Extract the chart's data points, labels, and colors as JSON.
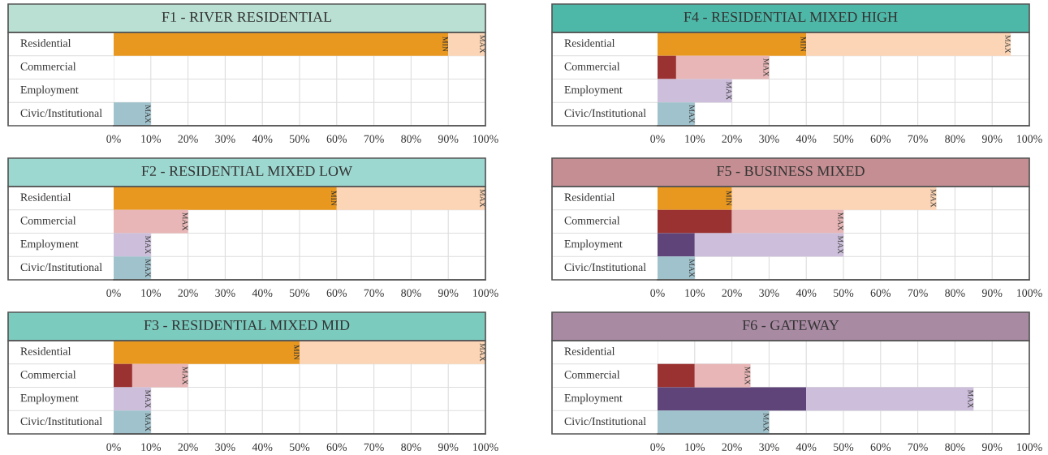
{
  "chart_data": [
    {
      "type": "bar",
      "orientation": "horizontal",
      "stacked": true,
      "title": "F1 - RIVER RESIDENTIAL",
      "categories": [
        "Residential",
        "Commercial",
        "Employment",
        "Civic/Institutional"
      ],
      "xlim": [
        0,
        100
      ],
      "xticks": [
        {
          "value": 0,
          "label": "0%"
        },
        {
          "value": 10,
          "label": "10%"
        },
        {
          "value": 20,
          "label": "20%"
        },
        {
          "value": 30,
          "label": "30%"
        },
        {
          "value": 40,
          "label": "40%"
        },
        {
          "value": 50,
          "label": "50%"
        },
        {
          "value": 60,
          "label": "60%"
        },
        {
          "value": 70,
          "label": "70%"
        },
        {
          "value": 80,
          "label": "80%"
        },
        {
          "value": 90,
          "label": "90%"
        },
        {
          "value": 100,
          "label": "100%"
        }
      ],
      "grid": true,
      "series": [
        {
          "colors": [
            "#e8971f",
            "#9b3232",
            "#5e4478",
            "#9fc2cc"
          ],
          "values": [
            90,
            null,
            null,
            null
          ],
          "value_labels": [
            "MIN",
            null,
            null,
            null
          ]
        },
        {
          "colors": [
            "#fbd5b5",
            "#e8b6b6",
            "#cdbfdc",
            "#9fc2cc"
          ],
          "values": [
            10,
            null,
            null,
            10
          ],
          "value_labels": [
            "MAX",
            null,
            null,
            "MAX"
          ]
        }
      ]
    },
    {
      "type": "bar",
      "orientation": "horizontal",
      "stacked": true,
      "title": "F4 - RESIDENTIAL MIXED HIGH",
      "categories": [
        "Residential",
        "Commercial",
        "Employment",
        "Civic/Institutional"
      ],
      "xlim": [
        0,
        100
      ],
      "xticks": [
        {
          "value": 0,
          "label": "0%"
        },
        {
          "value": 10,
          "label": "10%"
        },
        {
          "value": 20,
          "label": "20%"
        },
        {
          "value": 30,
          "label": "30%"
        },
        {
          "value": 40,
          "label": "40%"
        },
        {
          "value": 50,
          "label": "50%"
        },
        {
          "value": 60,
          "label": "60%"
        },
        {
          "value": 70,
          "label": "70%"
        },
        {
          "value": 80,
          "label": "80%"
        },
        {
          "value": 90,
          "label": "90%"
        },
        {
          "value": 100,
          "label": "100%"
        }
      ],
      "grid": true,
      "series": [
        {
          "colors": [
            "#e8971f",
            "#9b3232",
            "#5e4478",
            "#9fc2cc"
          ],
          "values": [
            40,
            5,
            null,
            null
          ],
          "value_labels": [
            "MIN",
            null,
            null,
            null
          ]
        },
        {
          "colors": [
            "#fbd5b5",
            "#e8b6b6",
            "#cdbfdc",
            "#9fc2cc"
          ],
          "values": [
            55,
            25,
            20,
            10
          ],
          "value_labels": [
            "MAX",
            "MAX",
            "MAX",
            "MAX"
          ]
        }
      ]
    },
    {
      "type": "bar",
      "orientation": "horizontal",
      "stacked": true,
      "title": "F2 - RESIDENTIAL MIXED LOW",
      "categories": [
        "Residential",
        "Commercial",
        "Employment",
        "Civic/Institutional"
      ],
      "xlim": [
        0,
        100
      ],
      "xticks": [
        {
          "value": 0,
          "label": "0%"
        },
        {
          "value": 10,
          "label": "10%"
        },
        {
          "value": 20,
          "label": "20%"
        },
        {
          "value": 30,
          "label": "30%"
        },
        {
          "value": 40,
          "label": "40%"
        },
        {
          "value": 50,
          "label": "50%"
        },
        {
          "value": 60,
          "label": "60%"
        },
        {
          "value": 70,
          "label": "70%"
        },
        {
          "value": 80,
          "label": "80%"
        },
        {
          "value": 90,
          "label": "90%"
        },
        {
          "value": 100,
          "label": "100%"
        }
      ],
      "grid": true,
      "series": [
        {
          "colors": [
            "#e8971f",
            "#9b3232",
            "#5e4478",
            "#9fc2cc"
          ],
          "values": [
            60,
            null,
            null,
            null
          ],
          "value_labels": [
            "MIN",
            null,
            null,
            null
          ]
        },
        {
          "colors": [
            "#fbd5b5",
            "#e8b6b6",
            "#cdbfdc",
            "#9fc2cc"
          ],
          "values": [
            40,
            20,
            10,
            10
          ],
          "value_labels": [
            "MAX",
            "MAX",
            "MAX",
            "MAX"
          ]
        }
      ]
    },
    {
      "type": "bar",
      "orientation": "horizontal",
      "stacked": true,
      "title": "F5 - BUSINESS MIXED",
      "categories": [
        "Residential",
        "Commercial",
        "Employment",
        "Civic/Institutional"
      ],
      "xlim": [
        0,
        100
      ],
      "xticks": [
        {
          "value": 0,
          "label": "0%"
        },
        {
          "value": 10,
          "label": "10%"
        },
        {
          "value": 20,
          "label": "20%"
        },
        {
          "value": 30,
          "label": "30%"
        },
        {
          "value": 40,
          "label": "40%"
        },
        {
          "value": 50,
          "label": "50%"
        },
        {
          "value": 60,
          "label": "60%"
        },
        {
          "value": 70,
          "label": "70%"
        },
        {
          "value": 80,
          "label": "80%"
        },
        {
          "value": 90,
          "label": "90%"
        },
        {
          "value": 100,
          "label": "100%"
        }
      ],
      "grid": true,
      "series": [
        {
          "colors": [
            "#e8971f",
            "#9b3232",
            "#5e4478",
            "#9fc2cc"
          ],
          "values": [
            20,
            20,
            10,
            null
          ],
          "value_labels": [
            "MIN",
            null,
            null,
            null
          ]
        },
        {
          "colors": [
            "#fbd5b5",
            "#e8b6b6",
            "#cdbfdc",
            "#9fc2cc"
          ],
          "values": [
            55,
            30,
            40,
            10
          ],
          "value_labels": [
            "MAX",
            "MAX",
            "MAX",
            "MAX"
          ]
        }
      ]
    },
    {
      "type": "bar",
      "orientation": "horizontal",
      "stacked": true,
      "title": "F3 - RESIDENTIAL MIXED MID",
      "categories": [
        "Residential",
        "Commercial",
        "Employment",
        "Civic/Institutional"
      ],
      "xlim": [
        0,
        100
      ],
      "xticks": [
        {
          "value": 0,
          "label": "0%"
        },
        {
          "value": 10,
          "label": "10%"
        },
        {
          "value": 20,
          "label": "20%"
        },
        {
          "value": 30,
          "label": "30%"
        },
        {
          "value": 40,
          "label": "40%"
        },
        {
          "value": 50,
          "label": "50%"
        },
        {
          "value": 60,
          "label": "60%"
        },
        {
          "value": 70,
          "label": "70%"
        },
        {
          "value": 80,
          "label": "80%"
        },
        {
          "value": 90,
          "label": "90%"
        },
        {
          "value": 100,
          "label": "100%"
        }
      ],
      "grid": true,
      "series": [
        {
          "colors": [
            "#e8971f",
            "#9b3232",
            "#5e4478",
            "#9fc2cc"
          ],
          "values": [
            50,
            5,
            null,
            null
          ],
          "value_labels": [
            "MIN",
            null,
            null,
            null
          ]
        },
        {
          "colors": [
            "#fbd5b5",
            "#e8b6b6",
            "#cdbfdc",
            "#9fc2cc"
          ],
          "values": [
            50,
            15,
            10,
            10
          ],
          "value_labels": [
            "MAX",
            "MAX",
            "MAX",
            "MAX"
          ]
        }
      ]
    },
    {
      "type": "bar",
      "orientation": "horizontal",
      "stacked": true,
      "title": "F6 - GATEWAY",
      "categories": [
        "Residential",
        "Commercial",
        "Employment",
        "Civic/Institutional"
      ],
      "xlim": [
        0,
        100
      ],
      "xticks": [
        {
          "value": 0,
          "label": "0%"
        },
        {
          "value": 10,
          "label": "10%"
        },
        {
          "value": 20,
          "label": "20%"
        },
        {
          "value": 30,
          "label": "30%"
        },
        {
          "value": 40,
          "label": "40%"
        },
        {
          "value": 50,
          "label": "50%"
        },
        {
          "value": 60,
          "label": "60%"
        },
        {
          "value": 70,
          "label": "70%"
        },
        {
          "value": 80,
          "label": "80%"
        },
        {
          "value": 90,
          "label": "90%"
        },
        {
          "value": 100,
          "label": "100%"
        }
      ],
      "grid": true,
      "series": [
        {
          "colors": [
            "#e8971f",
            "#9b3232",
            "#5e4478",
            "#9fc2cc"
          ],
          "values": [
            null,
            10,
            40,
            null
          ],
          "value_labels": [
            null,
            null,
            null,
            null
          ]
        },
        {
          "colors": [
            "#fbd5b5",
            "#e8b6b6",
            "#cdbfdc",
            "#9fc2cc"
          ],
          "values": [
            null,
            15,
            45,
            30
          ],
          "value_labels": [
            null,
            "MAX",
            "MAX",
            "MAX"
          ]
        }
      ]
    }
  ]
}
